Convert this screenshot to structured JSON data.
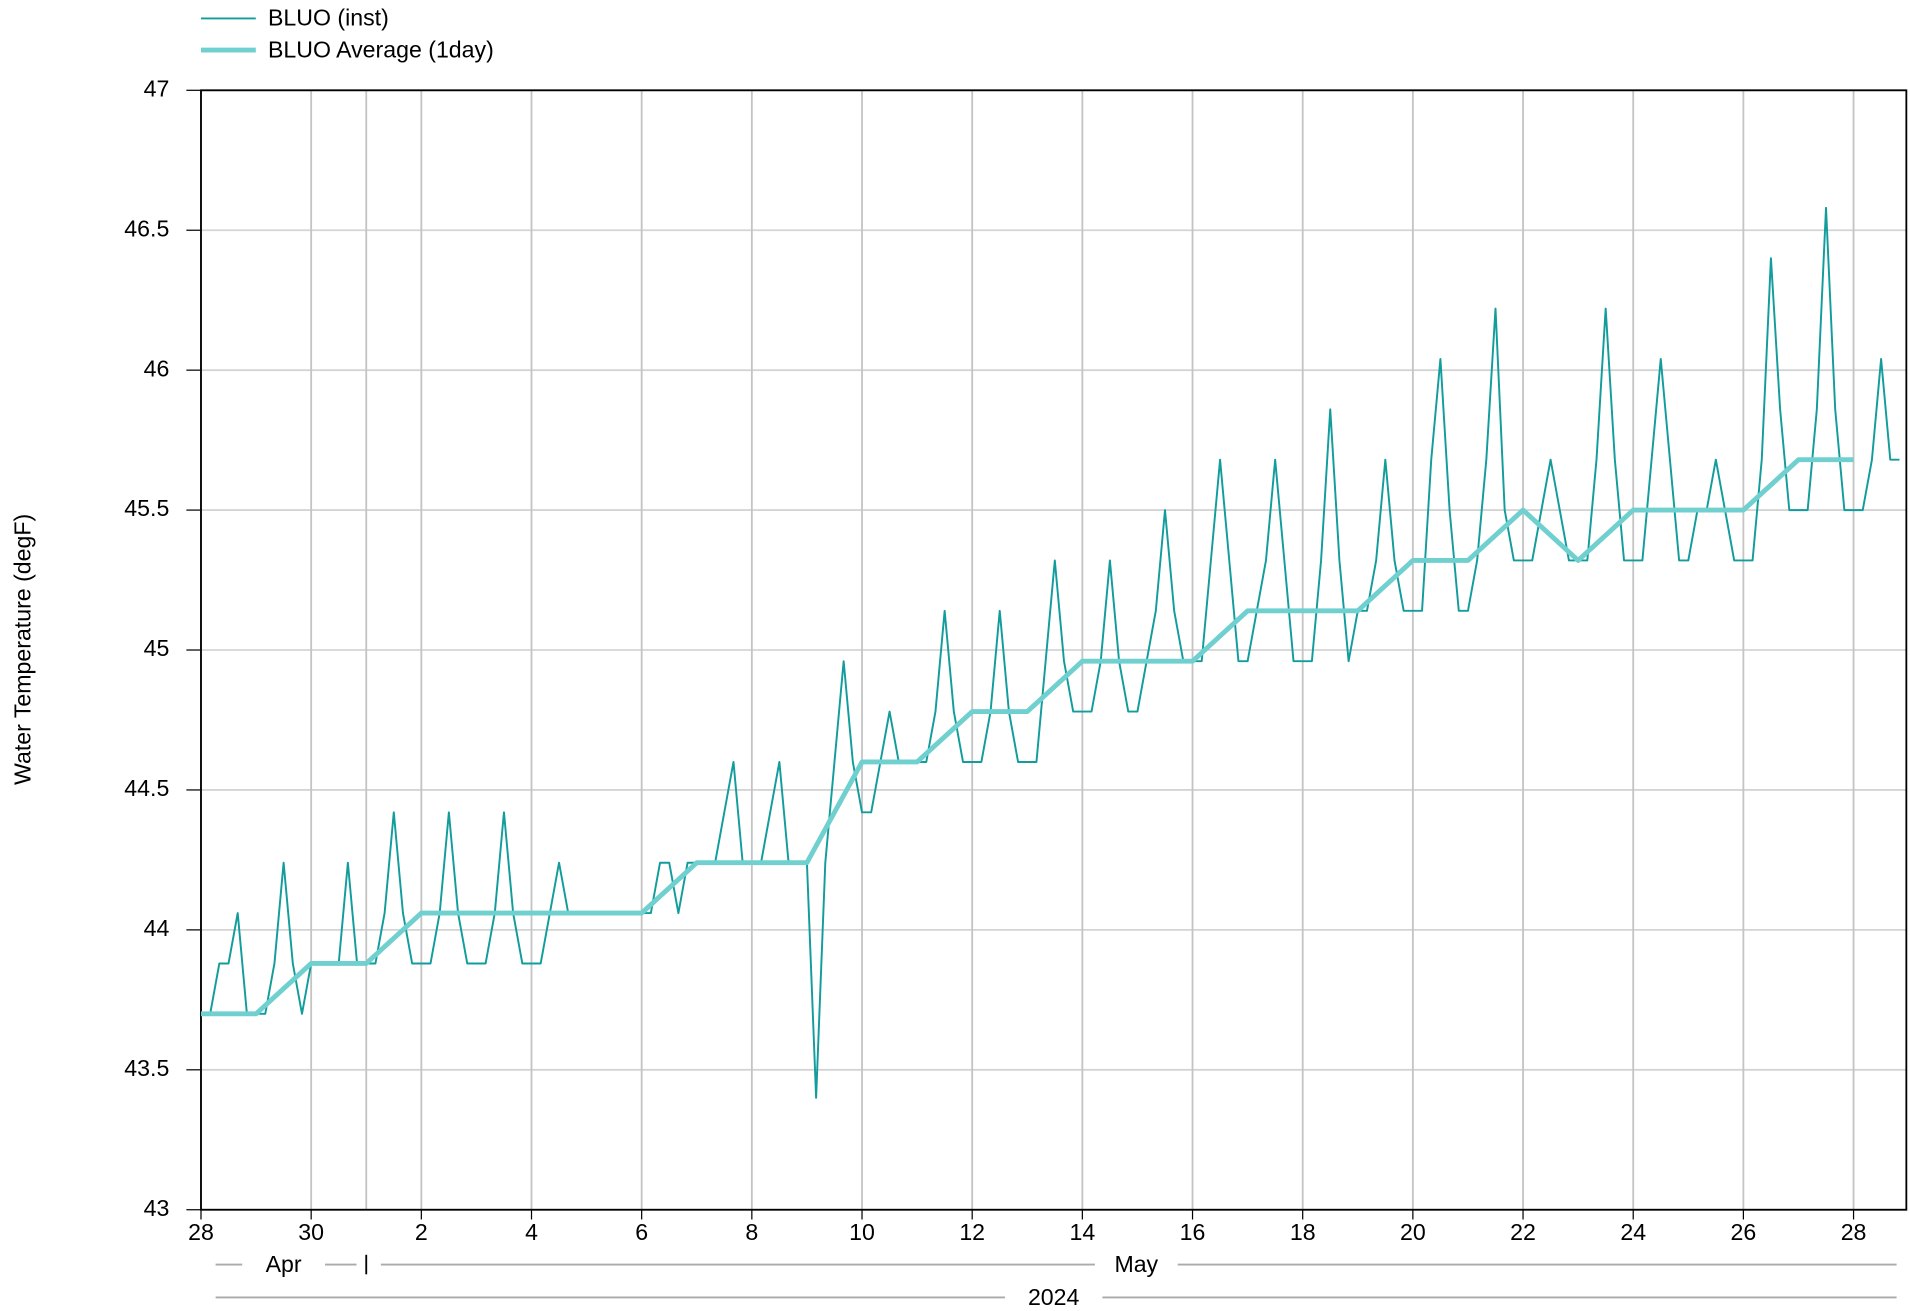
{
  "chart_data": {
    "type": "line",
    "y_label": "Water Temperature (degF)",
    "xlim": [
      "2024-04-28T00:00",
      "2024-05-28T23:00"
    ],
    "ylim": [
      43,
      47
    ],
    "yticks": [
      43,
      43.5,
      44,
      44.5,
      45,
      45.5,
      46,
      46.5,
      47
    ],
    "xticks": [
      {
        "value": "2024-04-28",
        "label": "28"
      },
      {
        "value": "2024-04-30",
        "label": "30"
      },
      {
        "value": "2024-05-02",
        "label": "2"
      },
      {
        "value": "2024-05-04",
        "label": "4"
      },
      {
        "value": "2024-05-06",
        "label": "6"
      },
      {
        "value": "2024-05-08",
        "label": "8"
      },
      {
        "value": "2024-05-10",
        "label": "10"
      },
      {
        "value": "2024-05-12",
        "label": "12"
      },
      {
        "value": "2024-05-14",
        "label": "14"
      },
      {
        "value": "2024-05-16",
        "label": "16"
      },
      {
        "value": "2024-05-18",
        "label": "18"
      },
      {
        "value": "2024-05-20",
        "label": "20"
      },
      {
        "value": "2024-05-22",
        "label": "22"
      },
      {
        "value": "2024-05-24",
        "label": "24"
      },
      {
        "value": "2024-05-26",
        "label": "26"
      },
      {
        "value": "2024-05-28",
        "label": "28"
      }
    ],
    "months": [
      {
        "value": "2024-04",
        "label": "Apr"
      },
      {
        "value": "2024-05",
        "label": "May"
      }
    ],
    "year": "2024",
    "grid": true,
    "legend": "top-left",
    "series": [
      {
        "name": "BLUO (inst)",
        "color": "#139c9c",
        "width": 1.6,
        "x": [
          "2024-04-28T00:00",
          "2024-04-28T04:00",
          "2024-04-28T08:00",
          "2024-04-28T12:00",
          "2024-04-28T16:00",
          "2024-04-28T20:00",
          "2024-04-29T00:00",
          "2024-04-29T04:00",
          "2024-04-29T08:00",
          "2024-04-29T12:00",
          "2024-04-29T16:00",
          "2024-04-29T20:00",
          "2024-04-30T00:00",
          "2024-04-30T04:00",
          "2024-04-30T08:00",
          "2024-04-30T12:00",
          "2024-04-30T16:00",
          "2024-04-30T20:00",
          "2024-05-01T00:00",
          "2024-05-01T04:00",
          "2024-05-01T08:00",
          "2024-05-01T12:00",
          "2024-05-01T16:00",
          "2024-05-01T20:00",
          "2024-05-02T00:00",
          "2024-05-02T04:00",
          "2024-05-02T08:00",
          "2024-05-02T12:00",
          "2024-05-02T16:00",
          "2024-05-02T20:00",
          "2024-05-03T00:00",
          "2024-05-03T04:00",
          "2024-05-03T08:00",
          "2024-05-03T12:00",
          "2024-05-03T16:00",
          "2024-05-03T20:00",
          "2024-05-04T00:00",
          "2024-05-04T04:00",
          "2024-05-04T08:00",
          "2024-05-04T12:00",
          "2024-05-04T16:00",
          "2024-05-04T20:00",
          "2024-05-05T00:00",
          "2024-05-05T04:00",
          "2024-05-05T08:00",
          "2024-05-05T12:00",
          "2024-05-05T16:00",
          "2024-05-05T20:00",
          "2024-05-06T00:00",
          "2024-05-06T04:00",
          "2024-05-06T08:00",
          "2024-05-06T12:00",
          "2024-05-06T16:00",
          "2024-05-06T20:00",
          "2024-05-07T00:00",
          "2024-05-07T04:00",
          "2024-05-07T08:00",
          "2024-05-07T12:00",
          "2024-05-07T16:00",
          "2024-05-07T20:00",
          "2024-05-08T00:00",
          "2024-05-08T04:00",
          "2024-05-08T08:00",
          "2024-05-08T12:00",
          "2024-05-08T16:00",
          "2024-05-08T20:00",
          "2024-05-09T00:00",
          "2024-05-09T04:00",
          "2024-05-09T08:00",
          "2024-05-09T12:00",
          "2024-05-09T16:00",
          "2024-05-09T20:00",
          "2024-05-10T00:00",
          "2024-05-10T04:00",
          "2024-05-10T08:00",
          "2024-05-10T12:00",
          "2024-05-10T16:00",
          "2024-05-10T20:00",
          "2024-05-11T00:00",
          "2024-05-11T04:00",
          "2024-05-11T08:00",
          "2024-05-11T12:00",
          "2024-05-11T16:00",
          "2024-05-11T20:00",
          "2024-05-12T00:00",
          "2024-05-12T04:00",
          "2024-05-12T08:00",
          "2024-05-12T12:00",
          "2024-05-12T16:00",
          "2024-05-12T20:00",
          "2024-05-13T00:00",
          "2024-05-13T04:00",
          "2024-05-13T08:00",
          "2024-05-13T12:00",
          "2024-05-13T16:00",
          "2024-05-13T20:00",
          "2024-05-14T00:00",
          "2024-05-14T04:00",
          "2024-05-14T08:00",
          "2024-05-14T12:00",
          "2024-05-14T16:00",
          "2024-05-14T20:00",
          "2024-05-15T00:00",
          "2024-05-15T04:00",
          "2024-05-15T08:00",
          "2024-05-15T12:00",
          "2024-05-15T16:00",
          "2024-05-15T20:00",
          "2024-05-16T00:00",
          "2024-05-16T04:00",
          "2024-05-16T08:00",
          "2024-05-16T12:00",
          "2024-05-16T16:00",
          "2024-05-16T20:00",
          "2024-05-17T00:00",
          "2024-05-17T04:00",
          "2024-05-17T08:00",
          "2024-05-17T12:00",
          "2024-05-17T16:00",
          "2024-05-17T20:00",
          "2024-05-18T00:00",
          "2024-05-18T04:00",
          "2024-05-18T08:00",
          "2024-05-18T12:00",
          "2024-05-18T16:00",
          "2024-05-18T20:00",
          "2024-05-19T00:00",
          "2024-05-19T04:00",
          "2024-05-19T08:00",
          "2024-05-19T12:00",
          "2024-05-19T16:00",
          "2024-05-19T20:00",
          "2024-05-20T00:00",
          "2024-05-20T04:00",
          "2024-05-20T08:00",
          "2024-05-20T12:00",
          "2024-05-20T16:00",
          "2024-05-20T20:00",
          "2024-05-21T00:00",
          "2024-05-21T04:00",
          "2024-05-21T08:00",
          "2024-05-21T12:00",
          "2024-05-21T16:00",
          "2024-05-21T20:00",
          "2024-05-22T00:00",
          "2024-05-22T04:00",
          "2024-05-22T08:00",
          "2024-05-22T12:00",
          "2024-05-22T16:00",
          "2024-05-22T20:00",
          "2024-05-23T00:00",
          "2024-05-23T04:00",
          "2024-05-23T08:00",
          "2024-05-23T12:00",
          "2024-05-23T16:00",
          "2024-05-23T20:00",
          "2024-05-24T00:00",
          "2024-05-24T04:00",
          "2024-05-24T08:00",
          "2024-05-24T12:00",
          "2024-05-24T16:00",
          "2024-05-24T20:00",
          "2024-05-25T00:00",
          "2024-05-25T04:00",
          "2024-05-25T08:00",
          "2024-05-25T12:00",
          "2024-05-25T16:00",
          "2024-05-25T20:00",
          "2024-05-26T00:00",
          "2024-05-26T04:00",
          "2024-05-26T08:00",
          "2024-05-26T12:00",
          "2024-05-26T16:00",
          "2024-05-26T20:00",
          "2024-05-27T00:00",
          "2024-05-27T04:00",
          "2024-05-27T08:00",
          "2024-05-27T12:00",
          "2024-05-27T16:00",
          "2024-05-27T20:00",
          "2024-05-28T00:00",
          "2024-05-28T04:00",
          "2024-05-28T08:00",
          "2024-05-28T12:00",
          "2024-05-28T16:00",
          "2024-05-28T20:00"
        ],
        "values": [
          43.7,
          43.7,
          43.88,
          43.88,
          44.06,
          43.7,
          43.7,
          43.7,
          43.88,
          44.24,
          43.88,
          43.7,
          43.88,
          43.88,
          43.88,
          43.88,
          44.24,
          43.88,
          43.88,
          43.88,
          44.06,
          44.42,
          44.06,
          43.88,
          43.88,
          43.88,
          44.06,
          44.42,
          44.06,
          43.88,
          43.88,
          43.88,
          44.06,
          44.42,
          44.06,
          43.88,
          43.88,
          43.88,
          44.06,
          44.24,
          44.06,
          44.06,
          44.06,
          44.06,
          44.06,
          44.06,
          44.06,
          44.06,
          44.06,
          44.06,
          44.24,
          44.24,
          44.06,
          44.24,
          44.24,
          44.24,
          44.24,
          44.42,
          44.6,
          44.24,
          44.24,
          44.24,
          44.42,
          44.6,
          44.24,
          44.24,
          44.24,
          43.4,
          44.24,
          44.6,
          44.96,
          44.6,
          44.42,
          44.42,
          44.6,
          44.78,
          44.6,
          44.6,
          44.6,
          44.6,
          44.78,
          45.14,
          44.78,
          44.6,
          44.6,
          44.6,
          44.78,
          45.14,
          44.78,
          44.6,
          44.6,
          44.6,
          44.96,
          45.32,
          44.96,
          44.78,
          44.78,
          44.78,
          44.96,
          45.32,
          44.96,
          44.78,
          44.78,
          44.96,
          45.14,
          45.5,
          45.14,
          44.96,
          44.96,
          44.96,
          45.32,
          45.68,
          45.32,
          44.96,
          44.96,
          45.14,
          45.32,
          45.68,
          45.32,
          44.96,
          44.96,
          44.96,
          45.32,
          45.86,
          45.32,
          44.96,
          45.14,
          45.14,
          45.32,
          45.68,
          45.32,
          45.14,
          45.14,
          45.14,
          45.68,
          46.04,
          45.5,
          45.14,
          45.14,
          45.32,
          45.68,
          46.22,
          45.5,
          45.32,
          45.32,
          45.32,
          45.5,
          45.68,
          45.5,
          45.32,
          45.32,
          45.32,
          45.68,
          46.22,
          45.68,
          45.32,
          45.32,
          45.32,
          45.68,
          46.04,
          45.68,
          45.32,
          45.32,
          45.5,
          45.5,
          45.68,
          45.5,
          45.32,
          45.32,
          45.32,
          45.68,
          46.4,
          45.86,
          45.5,
          45.5,
          45.5,
          45.86,
          46.58,
          45.86,
          45.5,
          45.5,
          45.5,
          45.68,
          46.04,
          45.68,
          45.68
        ]
      },
      {
        "name": "BLUO Average (1day)",
        "color": "#6fd0cf",
        "width": 4,
        "x": [
          "2024-04-28",
          "2024-04-29",
          "2024-04-30",
          "2024-05-01",
          "2024-05-02",
          "2024-05-03",
          "2024-05-04",
          "2024-05-05",
          "2024-05-06",
          "2024-05-07",
          "2024-05-08",
          "2024-05-09",
          "2024-05-10",
          "2024-05-11",
          "2024-05-12",
          "2024-05-13",
          "2024-05-14",
          "2024-05-15",
          "2024-05-16",
          "2024-05-17",
          "2024-05-18",
          "2024-05-19",
          "2024-05-20",
          "2024-05-21",
          "2024-05-22",
          "2024-05-23",
          "2024-05-24",
          "2024-05-25",
          "2024-05-26",
          "2024-05-27",
          "2024-05-28"
        ],
        "values": [
          43.7,
          43.7,
          43.88,
          43.88,
          44.06,
          44.06,
          44.06,
          44.06,
          44.06,
          44.24,
          44.24,
          44.24,
          44.6,
          44.6,
          44.78,
          44.78,
          44.96,
          44.96,
          44.96,
          45.14,
          45.14,
          45.14,
          45.32,
          45.32,
          45.5,
          45.32,
          45.5,
          45.5,
          45.5,
          45.68,
          45.68
        ]
      }
    ]
  }
}
